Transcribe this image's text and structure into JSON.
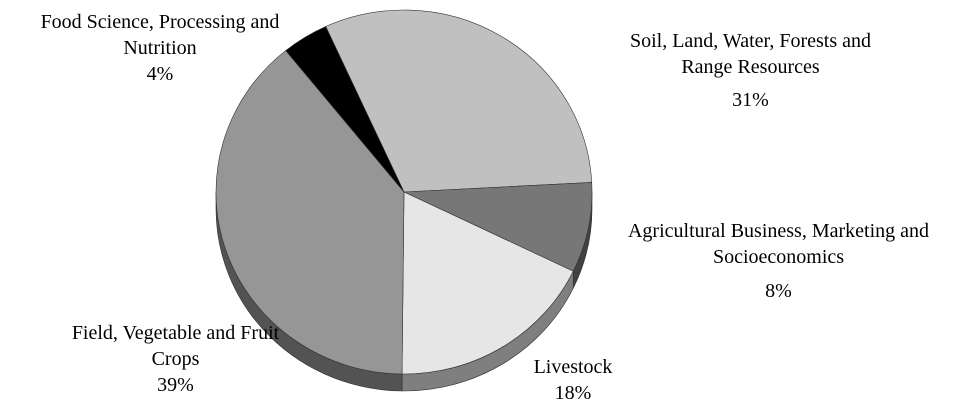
{
  "chart_data": {
    "type": "pie",
    "categories": [
      "Soil, Land, Water, Forests and Range Resources",
      "Agricultural Business, Marketing and Socioeconomics",
      "Livestock",
      "Field, Vegetable and Fruit Crops",
      "Food Science, Processing and Nutrition"
    ],
    "values": [
      31,
      8,
      18,
      39,
      4
    ],
    "value_labels": [
      "31%",
      "8%",
      "18%",
      "39%",
      "4%"
    ],
    "colors": [
      "#c0c0c0",
      "#777777",
      "#e6e6e6",
      "#969696",
      "#000000"
    ]
  }
}
